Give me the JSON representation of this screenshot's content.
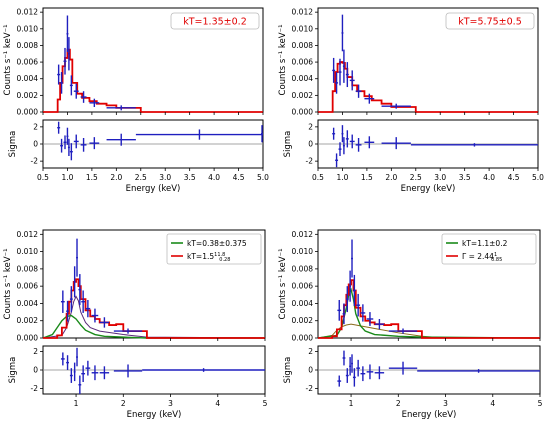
{
  "chart_data": [
    {
      "type": "step",
      "panel": "top-left",
      "ylabel": "Counts s⁻¹ keV⁻¹",
      "xlabel": "Energy (keV)",
      "xlim": [
        0.5,
        5.0
      ],
      "ylim": [
        0,
        0.0125
      ],
      "yticks": [
        "0.000",
        "0.002",
        "0.004",
        "0.006",
        "0.008",
        "0.010",
        "0.012"
      ],
      "xticks": [
        "0.5",
        "1.0",
        "1.5",
        "2.0",
        "2.5",
        "3.0",
        "3.5",
        "4.0",
        "4.5",
        "5.0"
      ],
      "annotation": "kT=1.35±0.2",
      "model_color": "#e00000",
      "data_color": "#1f1fbf",
      "model_step": {
        "x": [
          0.5,
          0.75,
          0.8,
          0.85,
          0.9,
          0.95,
          1.0,
          1.05,
          1.1,
          1.2,
          1.3,
          1.45,
          1.6,
          1.8,
          2.0,
          2.5,
          5.0
        ],
        "y": [
          0.0,
          0.0,
          0.0015,
          0.0035,
          0.0055,
          0.0065,
          0.0075,
          0.0063,
          0.0035,
          0.0022,
          0.0017,
          0.0013,
          0.001,
          0.0008,
          0.0005,
          0.0,
          0.0
        ]
      },
      "data_points": [
        {
          "x": 0.82,
          "y": 0.0045,
          "xerr": 0.03,
          "yerr": 0.0012
        },
        {
          "x": 0.88,
          "y": 0.0035,
          "xerr": 0.03,
          "yerr": 0.0013
        },
        {
          "x": 0.95,
          "y": 0.0061,
          "xerr": 0.03,
          "yerr": 0.0016
        },
        {
          "x": 1.0,
          "y": 0.0094,
          "xerr": 0.02,
          "yerr": 0.0022
        },
        {
          "x": 1.03,
          "y": 0.007,
          "xerr": 0.02,
          "yerr": 0.002
        },
        {
          "x": 1.08,
          "y": 0.0032,
          "xerr": 0.03,
          "yerr": 0.0012
        },
        {
          "x": 1.18,
          "y": 0.0025,
          "xerr": 0.05,
          "yerr": 0.0009
        },
        {
          "x": 1.33,
          "y": 0.0018,
          "xerr": 0.06,
          "yerr": 0.0007
        },
        {
          "x": 1.55,
          "y": 0.0011,
          "xerr": 0.1,
          "yerr": 0.0005
        },
        {
          "x": 2.1,
          "y": 0.0005,
          "xerr": 0.3,
          "yerr": 0.0003
        }
      ],
      "resid_ylabel": "Sigma",
      "resid_ylim": [
        -2.8,
        2.8
      ],
      "resid_yticks": [
        "-2",
        "0",
        "2"
      ],
      "residuals": [
        {
          "x": 0.82,
          "y": 1.9,
          "xerr": 0.03,
          "yerr": 0.7
        },
        {
          "x": 0.88,
          "y": -0.2,
          "xerr": 0.03,
          "yerr": 0.8
        },
        {
          "x": 0.95,
          "y": 0.2,
          "xerr": 0.03,
          "yerr": 0.8
        },
        {
          "x": 1.0,
          "y": 0.9,
          "xerr": 0.02,
          "yerr": 1.0
        },
        {
          "x": 1.03,
          "y": -0.4,
          "xerr": 0.02,
          "yerr": 1.0
        },
        {
          "x": 1.08,
          "y": -0.9,
          "xerr": 0.03,
          "yerr": 1.0
        },
        {
          "x": 1.18,
          "y": 0.3,
          "xerr": 0.05,
          "yerr": 0.8
        },
        {
          "x": 1.33,
          "y": -0.1,
          "xerr": 0.06,
          "yerr": 0.8
        },
        {
          "x": 1.55,
          "y": 0.1,
          "xerr": 0.1,
          "yerr": 0.7
        },
        {
          "x": 2.1,
          "y": 0.5,
          "xerr": 0.3,
          "yerr": 0.7
        },
        {
          "x": 3.7,
          "y": 1.1,
          "xerr": 1.3,
          "yerr": 0.6
        },
        {
          "x": 4.98,
          "y": 1.2,
          "xerr": 0.02,
          "yerr": 1.0
        }
      ]
    },
    {
      "type": "step",
      "panel": "top-right",
      "ylabel": "Counts s⁻¹ keV⁻¹",
      "xlabel": "Energy (keV)",
      "xlim": [
        0.5,
        5.0
      ],
      "ylim": [
        0,
        0.0125
      ],
      "yticks": [
        "0.000",
        "0.002",
        "0.004",
        "0.006",
        "0.008",
        "0.010",
        "0.012"
      ],
      "xticks": [
        "0.5",
        "1.0",
        "1.5",
        "2.0",
        "2.5",
        "3.0",
        "3.5",
        "4.0",
        "4.5",
        "5.0"
      ],
      "annotation": "kT=5.75±0.5",
      "model_color": "#e00000",
      "data_color": "#1f1fbf",
      "model_step": {
        "x": [
          0.5,
          0.75,
          0.8,
          0.85,
          0.9,
          0.95,
          1.0,
          1.05,
          1.1,
          1.2,
          1.3,
          1.45,
          1.6,
          1.8,
          2.0,
          2.5,
          5.0
        ],
        "y": [
          0.0,
          0.0,
          0.0025,
          0.0048,
          0.0058,
          0.006,
          0.0059,
          0.0052,
          0.0042,
          0.0032,
          0.0025,
          0.0019,
          0.0014,
          0.001,
          0.0006,
          0.0,
          0.0
        ]
      },
      "data_points": [
        {
          "x": 0.82,
          "y": 0.005,
          "xerr": 0.03,
          "yerr": 0.0015
        },
        {
          "x": 0.88,
          "y": 0.0035,
          "xerr": 0.03,
          "yerr": 0.0013
        },
        {
          "x": 0.95,
          "y": 0.0048,
          "xerr": 0.03,
          "yerr": 0.0016
        },
        {
          "x": 1.0,
          "y": 0.0095,
          "xerr": 0.02,
          "yerr": 0.0022
        },
        {
          "x": 1.03,
          "y": 0.0055,
          "xerr": 0.02,
          "yerr": 0.002
        },
        {
          "x": 1.1,
          "y": 0.0045,
          "xerr": 0.03,
          "yerr": 0.0015
        },
        {
          "x": 1.2,
          "y": 0.0038,
          "xerr": 0.05,
          "yerr": 0.0012
        },
        {
          "x": 1.33,
          "y": 0.0025,
          "xerr": 0.06,
          "yerr": 0.0008
        },
        {
          "x": 1.55,
          "y": 0.0016,
          "xerr": 0.1,
          "yerr": 0.0006
        },
        {
          "x": 2.1,
          "y": 0.0007,
          "xerr": 0.3,
          "yerr": 0.0003
        }
      ],
      "resid_ylabel": "Sigma",
      "resid_ylim": [
        -2.8,
        2.8
      ],
      "resid_yticks": [
        "-2",
        "0",
        "2"
      ],
      "residuals": [
        {
          "x": 0.82,
          "y": 1.2,
          "xerr": 0.03,
          "yerr": 0.7
        },
        {
          "x": 0.88,
          "y": -1.9,
          "xerr": 0.03,
          "yerr": 0.8
        },
        {
          "x": 0.95,
          "y": -0.6,
          "xerr": 0.03,
          "yerr": 0.8
        },
        {
          "x": 1.0,
          "y": 1.2,
          "xerr": 0.02,
          "yerr": 1.0
        },
        {
          "x": 1.03,
          "y": -0.2,
          "xerr": 0.02,
          "yerr": 1.0
        },
        {
          "x": 1.1,
          "y": 0.6,
          "xerr": 0.03,
          "yerr": 1.0
        },
        {
          "x": 1.2,
          "y": 0.3,
          "xerr": 0.05,
          "yerr": 0.8
        },
        {
          "x": 1.33,
          "y": -0.1,
          "xerr": 0.06,
          "yerr": 0.8
        },
        {
          "x": 1.55,
          "y": 0.2,
          "xerr": 0.1,
          "yerr": 0.7
        },
        {
          "x": 2.1,
          "y": 0.1,
          "xerr": 0.3,
          "yerr": 0.7
        },
        {
          "x": 3.7,
          "y": -0.1,
          "xerr": 1.3,
          "yerr": 0.2
        }
      ]
    },
    {
      "type": "step",
      "panel": "bottom-left",
      "ylabel": "Counts s⁻¹ keV⁻¹",
      "xlabel": "Energy (keV)",
      "xlim": [
        0.3,
        5.0
      ],
      "ylim": [
        0,
        0.0125
      ],
      "yticks": [
        "0.000",
        "0.002",
        "0.004",
        "0.006",
        "0.008",
        "0.010",
        "0.012"
      ],
      "xticks": [
        "1",
        "2",
        "3",
        "4",
        "5"
      ],
      "legend": [
        {
          "color": "#1a8a1a",
          "label": "kT=0.38±0.375"
        },
        {
          "color": "#e00000",
          "label_main": "kT=1.5",
          "label_sup": "11.8",
          "label_sub": "0.28"
        }
      ],
      "model_color": "#e00000",
      "model2_color": "#1a8a1a",
      "model3_color": "#5a2a7a",
      "data_color": "#1f1fbf",
      "model_step": {
        "x": [
          0.3,
          0.6,
          0.7,
          0.8,
          0.85,
          0.9,
          0.95,
          1.0,
          1.05,
          1.1,
          1.2,
          1.3,
          1.4,
          1.5,
          1.7,
          1.85,
          2.0,
          2.5,
          5.0
        ],
        "y": [
          0.0,
          0.0003,
          0.0012,
          0.0028,
          0.0042,
          0.0055,
          0.0065,
          0.0068,
          0.006,
          0.0045,
          0.0032,
          0.0025,
          0.0022,
          0.0018,
          0.0015,
          0.0016,
          0.0008,
          0.0,
          0.0
        ]
      },
      "model2_curve": {
        "x": [
          0.3,
          0.5,
          0.6,
          0.7,
          0.8,
          0.9,
          1.0,
          1.1,
          1.2,
          1.4,
          1.6,
          2.0,
          2.5,
          5.0
        ],
        "y": [
          0.0,
          0.0004,
          0.0012,
          0.002,
          0.0025,
          0.0026,
          0.0022,
          0.0015,
          0.0009,
          0.0004,
          0.0002,
          0.0001,
          0.0,
          0.0
        ]
      },
      "model3_curve": {
        "x": [
          0.3,
          0.7,
          0.8,
          0.9,
          0.95,
          1.0,
          1.05,
          1.1,
          1.2,
          1.3,
          1.5,
          2.0,
          2.5,
          5.0
        ],
        "y": [
          0.0,
          0.0003,
          0.0012,
          0.003,
          0.0042,
          0.0048,
          0.0043,
          0.003,
          0.0018,
          0.0012,
          0.0008,
          0.0004,
          0.0001,
          0.0
        ]
      },
      "data_points": [
        {
          "x": 0.72,
          "y": 0.0042,
          "xerr": 0.04,
          "yerr": 0.0013
        },
        {
          "x": 0.82,
          "y": 0.0031,
          "xerr": 0.03,
          "yerr": 0.0012
        },
        {
          "x": 0.9,
          "y": 0.0045,
          "xerr": 0.03,
          "yerr": 0.0015
        },
        {
          "x": 0.97,
          "y": 0.0065,
          "xerr": 0.02,
          "yerr": 0.0018
        },
        {
          "x": 1.02,
          "y": 0.0093,
          "xerr": 0.02,
          "yerr": 0.0022
        },
        {
          "x": 1.08,
          "y": 0.0056,
          "xerr": 0.03,
          "yerr": 0.0018
        },
        {
          "x": 1.15,
          "y": 0.0042,
          "xerr": 0.04,
          "yerr": 0.0013
        },
        {
          "x": 1.25,
          "y": 0.0034,
          "xerr": 0.05,
          "yerr": 0.001
        },
        {
          "x": 1.4,
          "y": 0.0026,
          "xerr": 0.07,
          "yerr": 0.0008
        },
        {
          "x": 1.6,
          "y": 0.0018,
          "xerr": 0.1,
          "yerr": 0.0006
        },
        {
          "x": 2.1,
          "y": 0.0008,
          "xerr": 0.3,
          "yerr": 0.0003
        }
      ],
      "resid_ylabel": "Sigma",
      "resid_ylim": [
        -2.6,
        2.6
      ],
      "resid_yticks": [
        "-2",
        "0",
        "2"
      ],
      "residuals": [
        {
          "x": 0.72,
          "y": 1.2,
          "xerr": 0.04,
          "yerr": 0.7
        },
        {
          "x": 0.82,
          "y": 0.8,
          "xerr": 0.03,
          "yerr": 0.8
        },
        {
          "x": 0.9,
          "y": -0.6,
          "xerr": 0.03,
          "yerr": 0.8
        },
        {
          "x": 0.97,
          "y": -0.2,
          "xerr": 0.02,
          "yerr": 1.0
        },
        {
          "x": 1.02,
          "y": 1.4,
          "xerr": 0.02,
          "yerr": 1.0
        },
        {
          "x": 1.08,
          "y": -1.6,
          "xerr": 0.03,
          "yerr": 1.0
        },
        {
          "x": 1.15,
          "y": -0.4,
          "xerr": 0.04,
          "yerr": 0.9
        },
        {
          "x": 1.25,
          "y": 0.2,
          "xerr": 0.05,
          "yerr": 0.8
        },
        {
          "x": 1.4,
          "y": -0.3,
          "xerr": 0.07,
          "yerr": 0.8
        },
        {
          "x": 1.6,
          "y": -0.3,
          "xerr": 0.1,
          "yerr": 0.7
        },
        {
          "x": 2.1,
          "y": -0.1,
          "xerr": 0.3,
          "yerr": 0.7
        },
        {
          "x": 3.7,
          "y": 0.0,
          "xerr": 1.3,
          "yerr": 0.2
        }
      ]
    },
    {
      "type": "step",
      "panel": "bottom-right",
      "ylabel": "Counts s⁻¹ keV⁻¹",
      "xlabel": "Energy (keV)",
      "xlim": [
        0.3,
        5.0
      ],
      "ylim": [
        0,
        0.0125
      ],
      "yticks": [
        "0.000",
        "0.002",
        "0.004",
        "0.006",
        "0.008",
        "0.010",
        "0.012"
      ],
      "xticks": [
        "1",
        "2",
        "3",
        "4",
        "5"
      ],
      "legend": [
        {
          "color": "#1a8a1a",
          "label": "kT=1.1±0.2"
        },
        {
          "color": "#e00000",
          "label_main": "Γ = 2.44",
          "label_sup": "1",
          "label_sub": "0.85"
        }
      ],
      "model_color": "#e00000",
      "model2_color": "#1a8a1a",
      "model3_color": "#8a6a1a",
      "data_color": "#1f1fbf",
      "model_step": {
        "x": [
          0.3,
          0.6,
          0.7,
          0.8,
          0.85,
          0.9,
          0.95,
          1.0,
          1.05,
          1.1,
          1.2,
          1.3,
          1.4,
          1.5,
          1.7,
          1.85,
          2.0,
          2.5,
          5.0
        ],
        "y": [
          0.0,
          0.0002,
          0.001,
          0.0025,
          0.0038,
          0.005,
          0.0062,
          0.0067,
          0.0055,
          0.0035,
          0.0025,
          0.002,
          0.0018,
          0.0016,
          0.0015,
          0.0016,
          0.0008,
          0.0,
          0.0
        ]
      },
      "model2_curve": {
        "x": [
          0.3,
          0.7,
          0.8,
          0.9,
          0.95,
          1.0,
          1.05,
          1.1,
          1.2,
          1.3,
          1.5,
          2.0,
          2.5,
          5.0
        ],
        "y": [
          0.0,
          0.0003,
          0.0012,
          0.0035,
          0.005,
          0.0056,
          0.0045,
          0.0028,
          0.0014,
          0.0008,
          0.0004,
          0.0002,
          0.0001,
          0.0
        ]
      },
      "model3_curve": {
        "x": [
          0.3,
          0.6,
          0.7,
          0.8,
          0.9,
          1.0,
          1.1,
          1.2,
          1.4,
          1.6,
          2.0,
          2.5,
          3.0,
          5.0
        ],
        "y": [
          0.0,
          0.0003,
          0.0009,
          0.0013,
          0.0015,
          0.0016,
          0.0015,
          0.0014,
          0.0012,
          0.001,
          0.0006,
          0.0002,
          0.0,
          0.0
        ]
      },
      "data_points": [
        {
          "x": 0.75,
          "y": 0.0032,
          "xerr": 0.04,
          "yerr": 0.0012
        },
        {
          "x": 0.85,
          "y": 0.0028,
          "xerr": 0.03,
          "yerr": 0.0012
        },
        {
          "x": 0.92,
          "y": 0.0045,
          "xerr": 0.03,
          "yerr": 0.0015
        },
        {
          "x": 0.98,
          "y": 0.006,
          "xerr": 0.02,
          "yerr": 0.0018
        },
        {
          "x": 1.02,
          "y": 0.0092,
          "xerr": 0.02,
          "yerr": 0.0022
        },
        {
          "x": 1.07,
          "y": 0.0055,
          "xerr": 0.03,
          "yerr": 0.0018
        },
        {
          "x": 1.15,
          "y": 0.0038,
          "xerr": 0.04,
          "yerr": 0.0013
        },
        {
          "x": 1.25,
          "y": 0.0029,
          "xerr": 0.05,
          "yerr": 0.001
        },
        {
          "x": 1.4,
          "y": 0.0022,
          "xerr": 0.07,
          "yerr": 0.0008
        },
        {
          "x": 1.6,
          "y": 0.0016,
          "xerr": 0.1,
          "yerr": 0.0006
        },
        {
          "x": 2.1,
          "y": 0.0008,
          "xerr": 0.3,
          "yerr": 0.0003
        }
      ],
      "resid_ylabel": "Sigma",
      "resid_ylim": [
        -2.6,
        2.6
      ],
      "resid_yticks": [
        "-2",
        "0",
        "2"
      ],
      "residuals": [
        {
          "x": 0.75,
          "y": -1.2,
          "xerr": 0.04,
          "yerr": 0.6
        },
        {
          "x": 0.85,
          "y": 1.3,
          "xerr": 0.03,
          "yerr": 0.8
        },
        {
          "x": 0.92,
          "y": -0.6,
          "xerr": 0.03,
          "yerr": 0.8
        },
        {
          "x": 0.98,
          "y": 0.4,
          "xerr": 0.02,
          "yerr": 1.0
        },
        {
          "x": 1.02,
          "y": 0.7,
          "xerr": 0.02,
          "yerr": 1.0
        },
        {
          "x": 1.07,
          "y": -0.8,
          "xerr": 0.03,
          "yerr": 1.0
        },
        {
          "x": 1.15,
          "y": 0.2,
          "xerr": 0.04,
          "yerr": 0.9
        },
        {
          "x": 1.25,
          "y": -0.4,
          "xerr": 0.05,
          "yerr": 0.8
        },
        {
          "x": 1.4,
          "y": -0.2,
          "xerr": 0.07,
          "yerr": 0.8
        },
        {
          "x": 1.6,
          "y": -0.3,
          "xerr": 0.1,
          "yerr": 0.7
        },
        {
          "x": 2.1,
          "y": 0.2,
          "xerr": 0.3,
          "yerr": 0.7
        },
        {
          "x": 3.7,
          "y": -0.1,
          "xerr": 1.3,
          "yerr": 0.2
        }
      ]
    }
  ]
}
